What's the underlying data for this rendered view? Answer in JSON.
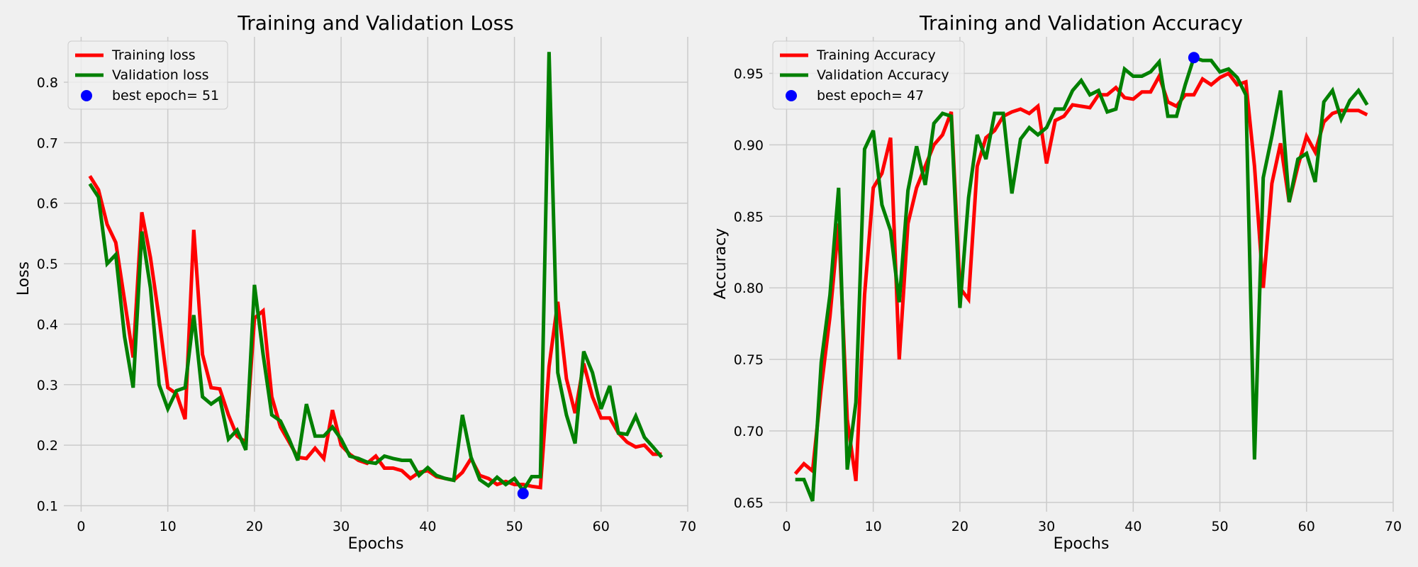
{
  "chart_data": [
    {
      "type": "line",
      "title": "Training and Validation Loss",
      "xlabel": "Epochs",
      "ylabel": "Loss",
      "xlim": [
        -2,
        70
      ],
      "ylim": [
        0.09,
        0.875
      ],
      "xticks": [
        0,
        10,
        20,
        30,
        40,
        50,
        60,
        70
      ],
      "yticks": [
        0.1,
        0.2,
        0.3,
        0.4,
        0.5,
        0.6,
        0.7,
        0.8
      ],
      "grid": true,
      "legend_position": "top-left",
      "series": [
        {
          "name": "Training loss",
          "color": "#ff0000",
          "x": [
            1,
            2,
            3,
            4,
            5,
            6,
            7,
            8,
            9,
            10,
            11,
            12,
            13,
            14,
            15,
            16,
            17,
            18,
            19,
            20,
            21,
            22,
            23,
            24,
            25,
            26,
            27,
            28,
            29,
            30,
            31,
            32,
            33,
            34,
            35,
            36,
            37,
            38,
            39,
            40,
            41,
            42,
            43,
            44,
            45,
            46,
            47,
            48,
            49,
            50,
            51,
            52,
            53,
            54,
            55,
            56,
            57,
            58,
            59,
            60,
            61,
            62,
            63,
            64,
            65,
            66,
            67
          ],
          "values": [
            0.645,
            0.622,
            0.565,
            0.535,
            0.44,
            0.345,
            0.585,
            0.51,
            0.41,
            0.295,
            0.285,
            0.243,
            0.556,
            0.35,
            0.295,
            0.293,
            0.25,
            0.215,
            0.205,
            0.41,
            0.422,
            0.28,
            0.23,
            0.205,
            0.18,
            0.178,
            0.195,
            0.178,
            0.258,
            0.2,
            0.185,
            0.175,
            0.17,
            0.182,
            0.162,
            0.162,
            0.158,
            0.145,
            0.155,
            0.158,
            0.148,
            0.145,
            0.142,
            0.155,
            0.178,
            0.15,
            0.145,
            0.135,
            0.14,
            0.135,
            0.135,
            0.132,
            0.13,
            0.33,
            0.437,
            0.31,
            0.253,
            0.335,
            0.28,
            0.245,
            0.245,
            0.22,
            0.205,
            0.197,
            0.2,
            0.185,
            0.185
          ]
        },
        {
          "name": "Validation loss",
          "color": "#008000",
          "x": [
            1,
            2,
            3,
            4,
            5,
            6,
            7,
            8,
            9,
            10,
            11,
            12,
            13,
            14,
            15,
            16,
            17,
            18,
            19,
            20,
            21,
            22,
            23,
            24,
            25,
            26,
            27,
            28,
            29,
            30,
            31,
            32,
            33,
            34,
            35,
            36,
            37,
            38,
            39,
            40,
            41,
            42,
            43,
            44,
            45,
            46,
            47,
            48,
            49,
            50,
            51,
            52,
            53,
            54,
            55,
            56,
            57,
            58,
            59,
            60,
            61,
            62,
            63,
            64,
            65,
            66,
            67
          ],
          "values": [
            0.632,
            0.61,
            0.5,
            0.515,
            0.38,
            0.295,
            0.553,
            0.46,
            0.3,
            0.26,
            0.29,
            0.295,
            0.415,
            0.28,
            0.268,
            0.278,
            0.21,
            0.225,
            0.192,
            0.465,
            0.35,
            0.25,
            0.24,
            0.21,
            0.175,
            0.268,
            0.215,
            0.215,
            0.23,
            0.21,
            0.182,
            0.178,
            0.172,
            0.17,
            0.182,
            0.178,
            0.175,
            0.175,
            0.15,
            0.163,
            0.15,
            0.145,
            0.142,
            0.25,
            0.18,
            0.143,
            0.133,
            0.147,
            0.135,
            0.145,
            0.125,
            0.148,
            0.148,
            0.85,
            0.32,
            0.25,
            0.203,
            0.355,
            0.32,
            0.26,
            0.298,
            0.22,
            0.218,
            0.248,
            0.213,
            0.197,
            0.18
          ]
        }
      ],
      "best_point": {
        "label": "best epoch= 51",
        "x": 51,
        "y": 0.12,
        "color": "#0000ff"
      }
    },
    {
      "type": "line",
      "title": "Training and Validation Accuracy",
      "xlabel": "Epochs",
      "ylabel": "Accuracy",
      "xlim": [
        -2,
        70
      ],
      "ylim": [
        0.6435,
        0.9755
      ],
      "xticks": [
        0,
        10,
        20,
        30,
        40,
        50,
        60,
        70
      ],
      "yticks": [
        0.65,
        0.7,
        0.75,
        0.8,
        0.85,
        0.9,
        0.95
      ],
      "grid": true,
      "legend_position": "top-left",
      "series": [
        {
          "name": "Training Accuracy",
          "color": "#ff0000",
          "x": [
            1,
            2,
            3,
            4,
            5,
            6,
            7,
            8,
            9,
            10,
            11,
            12,
            13,
            14,
            15,
            16,
            17,
            18,
            19,
            20,
            21,
            22,
            23,
            24,
            25,
            26,
            27,
            28,
            29,
            30,
            31,
            32,
            33,
            34,
            35,
            36,
            37,
            38,
            39,
            40,
            41,
            42,
            43,
            44,
            45,
            46,
            47,
            48,
            49,
            50,
            51,
            52,
            53,
            54,
            55,
            56,
            57,
            58,
            59,
            60,
            61,
            62,
            63,
            64,
            65,
            66,
            67
          ],
          "values": [
            0.67,
            0.677,
            0.672,
            0.73,
            0.78,
            0.845,
            0.708,
            0.665,
            0.795,
            0.87,
            0.88,
            0.905,
            0.75,
            0.845,
            0.87,
            0.885,
            0.9,
            0.907,
            0.923,
            0.8,
            0.792,
            0.885,
            0.905,
            0.91,
            0.92,
            0.923,
            0.925,
            0.922,
            0.927,
            0.887,
            0.917,
            0.92,
            0.928,
            0.927,
            0.926,
            0.935,
            0.935,
            0.94,
            0.933,
            0.932,
            0.937,
            0.937,
            0.948,
            0.93,
            0.927,
            0.935,
            0.935,
            0.946,
            0.942,
            0.947,
            0.95,
            0.942,
            0.944,
            0.885,
            0.8,
            0.873,
            0.901,
            0.86,
            0.885,
            0.906,
            0.895,
            0.916,
            0.922,
            0.924,
            0.924,
            0.924,
            0.921
          ]
        },
        {
          "name": "Validation Accuracy",
          "color": "#008000",
          "x": [
            1,
            2,
            3,
            4,
            5,
            6,
            7,
            8,
            9,
            10,
            11,
            12,
            13,
            14,
            15,
            16,
            17,
            18,
            19,
            20,
            21,
            22,
            23,
            24,
            25,
            26,
            27,
            28,
            29,
            30,
            31,
            32,
            33,
            34,
            35,
            36,
            37,
            38,
            39,
            40,
            41,
            42,
            43,
            44,
            45,
            46,
            47,
            48,
            49,
            50,
            51,
            52,
            53,
            54,
            55,
            56,
            57,
            58,
            59,
            60,
            61,
            62,
            63,
            64,
            65,
            66,
            67
          ],
          "values": [
            0.666,
            0.666,
            0.651,
            0.748,
            0.795,
            0.87,
            0.673,
            0.72,
            0.897,
            0.91,
            0.858,
            0.84,
            0.79,
            0.868,
            0.899,
            0.872,
            0.915,
            0.922,
            0.92,
            0.786,
            0.863,
            0.907,
            0.89,
            0.922,
            0.922,
            0.866,
            0.904,
            0.912,
            0.907,
            0.912,
            0.925,
            0.925,
            0.938,
            0.945,
            0.935,
            0.938,
            0.923,
            0.925,
            0.953,
            0.948,
            0.948,
            0.951,
            0.958,
            0.92,
            0.92,
            0.942,
            0.961,
            0.959,
            0.959,
            0.951,
            0.953,
            0.947,
            0.935,
            0.68,
            0.877,
            0.906,
            0.938,
            0.86,
            0.89,
            0.894,
            0.874,
            0.93,
            0.938,
            0.918,
            0.931,
            0.938,
            0.928
          ]
        }
      ],
      "best_point": {
        "label": "best epoch= 47",
        "x": 47,
        "y": 0.961,
        "color": "#0000ff"
      }
    }
  ]
}
